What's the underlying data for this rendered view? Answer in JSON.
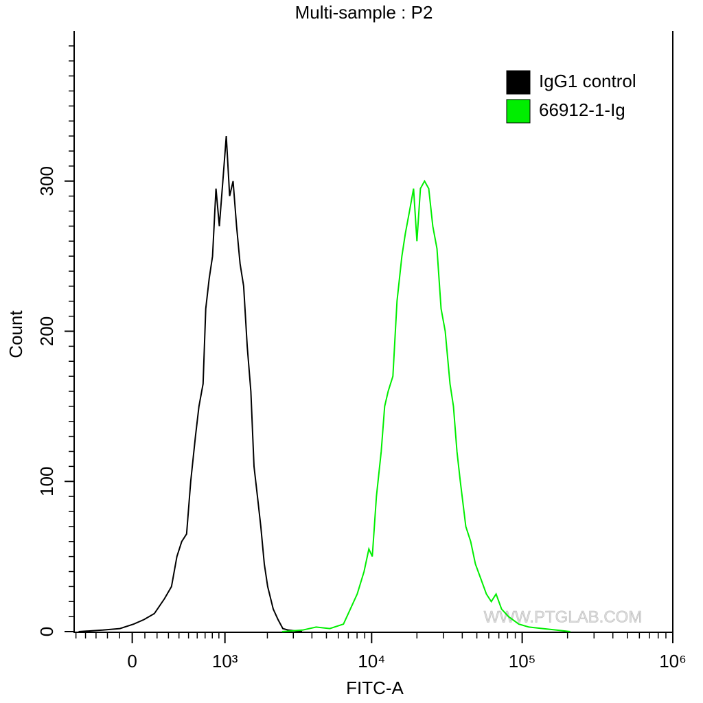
{
  "chart_data": {
    "type": "histogram",
    "title": "Multi-sample : P2",
    "x_label": "FITC-A",
    "y_label": "Count",
    "xscale": "biexponential",
    "xlim": [
      -520,
      1000000
    ],
    "ylim": [
      0,
      400
    ],
    "xticks": [
      0,
      {
        "value": 1000,
        "label": "10³"
      },
      {
        "value": 10000,
        "label": "10⁴"
      },
      {
        "value": 100000,
        "label": "10⁵"
      },
      {
        "value": 1000000,
        "label": "10⁶"
      }
    ],
    "xminorticks": [
      -500,
      -400,
      -300,
      -200,
      -100,
      100,
      200,
      300,
      400,
      500,
      600,
      700,
      800,
      900,
      2000,
      3000,
      4000,
      5000,
      6000,
      7000,
      8000,
      9000,
      20000,
      30000,
      40000,
      50000,
      60000,
      70000,
      80000,
      90000,
      200000,
      300000,
      400000,
      500000,
      600000,
      700000,
      800000,
      900000
    ],
    "yticks": [
      0,
      100,
      200,
      300
    ],
    "yminorticks": [
      10,
      20,
      30,
      40,
      50,
      60,
      70,
      80,
      90,
      110,
      120,
      130,
      140,
      150,
      160,
      170,
      180,
      190,
      210,
      220,
      230,
      240,
      250,
      260,
      270,
      280,
      290,
      310,
      320,
      330,
      340,
      350,
      360,
      370,
      380,
      390
    ],
    "legend": "top-right",
    "watermark": "WWW.PTGLAB.COM",
    "series": [
      {
        "name": "IgG1 control",
        "color": "#000000",
        "x": [
          -471,
          -241,
          -98,
          11,
          93,
          177,
          265,
          328,
          380,
          428,
          479,
          524,
          579,
          621,
          673,
          709,
          756,
          804,
          855,
          907,
          964,
          1023,
          1084,
          1148,
          1217,
          1290,
          1367,
          1449,
          1537,
          1617,
          1709,
          1803,
          1905,
          2009,
          2194,
          2364,
          2549,
          2776,
          3435
        ],
        "values": [
          0,
          1,
          2,
          5,
          8,
          12,
          22,
          30,
          50,
          60,
          65,
          100,
          130,
          150,
          165,
          215,
          235,
          250,
          295,
          270,
          300,
          330,
          290,
          300,
          270,
          245,
          230,
          190,
          160,
          110,
          90,
          70,
          45,
          30,
          15,
          8,
          2,
          1,
          0
        ]
      },
      {
        "name": "66912-1-Ig",
        "color": "#00ee00",
        "x": [
          2520,
          3456,
          4269,
          5266,
          6497,
          7215,
          8016,
          8910,
          9587,
          10107,
          10764,
          11588,
          12206,
          12875,
          13854,
          14755,
          15888,
          16738,
          17845,
          19004,
          20008,
          21089,
          22480,
          23948,
          25493,
          27166,
          28943,
          30823,
          33166,
          34969,
          36874,
          38831,
          42230,
          45475,
          48925,
          53200,
          57860,
          62315,
          67079,
          72976,
          81061,
          94940,
          111086,
          137145,
          169203,
          208832
        ],
        "values": [
          0,
          1,
          3,
          2,
          5,
          15,
          25,
          40,
          55,
          50,
          90,
          120,
          150,
          160,
          170,
          220,
          250,
          265,
          280,
          295,
          260,
          295,
          300,
          295,
          270,
          255,
          215,
          200,
          165,
          150,
          120,
          100,
          70,
          60,
          45,
          35,
          25,
          20,
          25,
          15,
          10,
          5,
          3,
          2,
          1,
          0
        ]
      }
    ]
  }
}
